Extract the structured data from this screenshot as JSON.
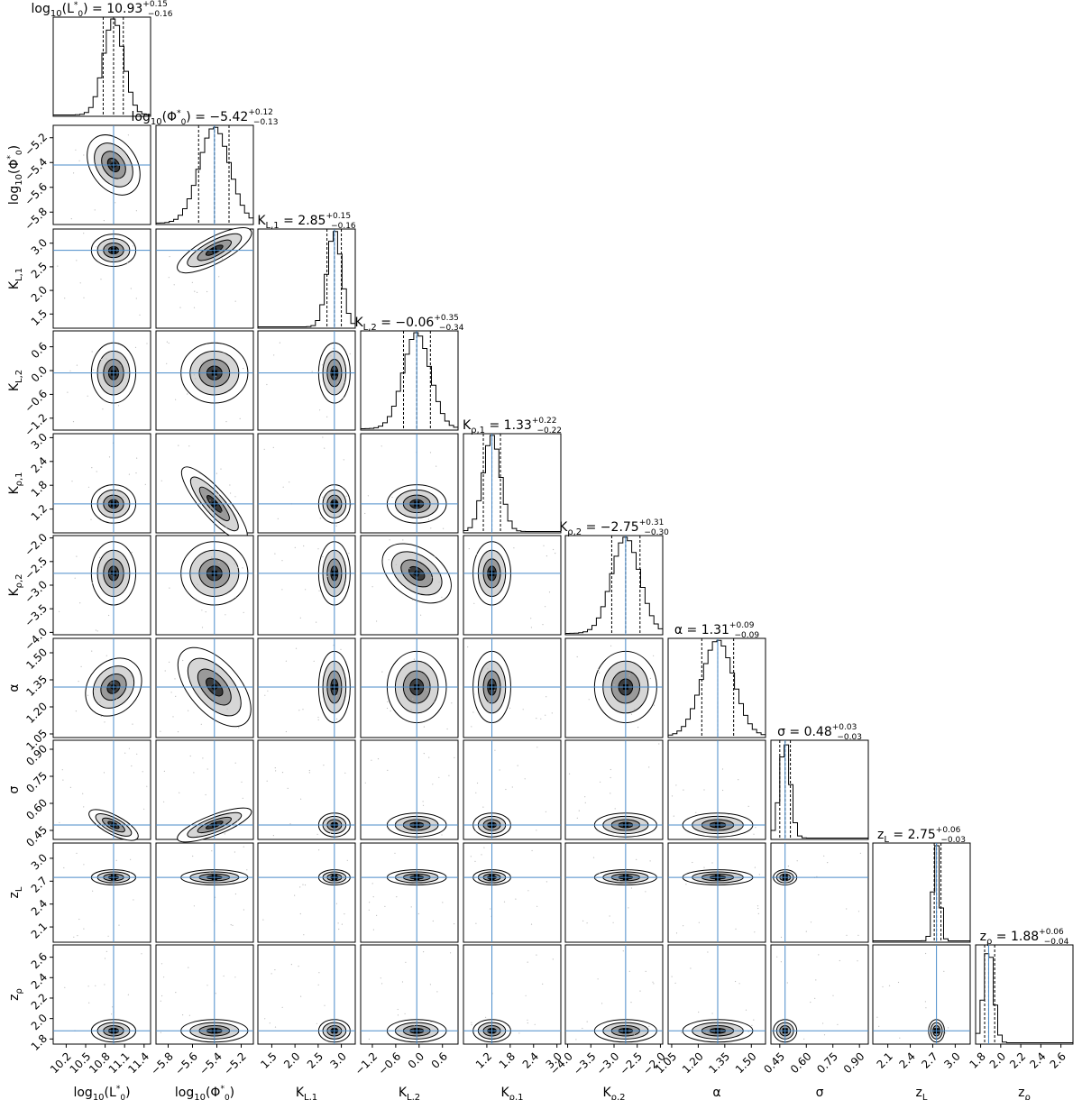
{
  "chart_data": {
    "type": "corner",
    "parameters": [
      {
        "label": "log10(L*0)",
        "axis_label": "log10(L*0)",
        "median": 10.93,
        "plus": 0.15,
        "minus": 0.16,
        "truth": 10.93,
        "range": [
          10.0,
          11.5
        ],
        "ticks": [
          10.2,
          10.5,
          10.8,
          11.1,
          11.4
        ],
        "tick_labels": [
          "10.2",
          "10.5",
          "10.8",
          "11.1",
          "11.4"
        ],
        "title": "log10(L*0) = 10.93",
        "title_plus": "+0.15",
        "title_minus": "−0.16"
      },
      {
        "label": "log10(Φ*0)",
        "axis_label": "log10(Φ*0)",
        "median": -5.42,
        "plus": 0.12,
        "minus": 0.13,
        "truth": -5.42,
        "range": [
          -5.9,
          -5.1
        ],
        "ticks": [
          -5.8,
          -5.6,
          -5.4,
          -5.2
        ],
        "tick_labels": [
          "−5.8",
          "−5.6",
          "−5.4",
          "−5.2"
        ],
        "title": "log10(Φ*0) = −5.42",
        "title_plus": "+0.12",
        "title_minus": "−0.13"
      },
      {
        "label": "KL,1",
        "axis_label": "KL,1",
        "median": 2.85,
        "plus": 0.15,
        "minus": 0.16,
        "truth": 2.85,
        "range": [
          1.2,
          3.3
        ],
        "ticks": [
          1.5,
          2.0,
          2.5,
          3.0
        ],
        "tick_labels": [
          "1.5",
          "2.0",
          "2.5",
          "3.0"
        ],
        "title": "KL,1 = 2.85",
        "title_plus": "+0.15",
        "title_minus": "−0.16"
      },
      {
        "label": "KL,2",
        "axis_label": "KL,2",
        "median": -0.06,
        "plus": 0.35,
        "minus": 0.34,
        "truth": -0.06,
        "range": [
          -1.5,
          1.0
        ],
        "ticks": [
          -1.2,
          -0.6,
          0.0,
          0.6
        ],
        "tick_labels": [
          "−1.2",
          "−0.6",
          "0.0",
          "0.6"
        ],
        "title": "KL,2 = −0.06",
        "title_plus": "+0.35",
        "title_minus": "−0.34"
      },
      {
        "label": "Kρ,1",
        "axis_label": "Kρ,1",
        "median": 1.33,
        "plus": 0.22,
        "minus": 0.22,
        "truth": 1.33,
        "range": [
          0.6,
          3.1
        ],
        "ticks": [
          1.2,
          1.8,
          2.4,
          3.0
        ],
        "tick_labels": [
          "1.2",
          "1.8",
          "2.4",
          "3.0"
        ],
        "title": "Kρ,1 = 1.33",
        "title_plus": "+0.22",
        "title_minus": "−0.22"
      },
      {
        "label": "Kρ,2",
        "axis_label": "Kρ,2",
        "median": -2.75,
        "plus": 0.31,
        "minus": 0.3,
        "truth": -2.75,
        "range": [
          -4.05,
          -1.95
        ],
        "ticks": [
          -4.0,
          -3.5,
          -3.0,
          -2.5,
          -2.0
        ],
        "tick_labels": [
          "−4.0",
          "−3.5",
          "−3.0",
          "−2.5",
          "−2.0"
        ],
        "title": "Kρ,2 = −2.75",
        "title_plus": "+0.31",
        "title_minus": "−0.30"
      },
      {
        "label": "α",
        "axis_label": "α",
        "median": 1.31,
        "plus": 0.09,
        "minus": 0.09,
        "truth": 1.31,
        "range": [
          1.03,
          1.58
        ],
        "ticks": [
          1.05,
          1.2,
          1.35,
          1.5
        ],
        "tick_labels": [
          "1.05",
          "1.20",
          "1.35",
          "1.50"
        ],
        "title": "α = 1.31",
        "title_plus": "+0.09",
        "title_minus": "−0.09"
      },
      {
        "label": "σ",
        "axis_label": "σ",
        "median": 0.48,
        "plus": 0.03,
        "minus": 0.03,
        "truth": 0.48,
        "range": [
          0.4,
          0.95
        ],
        "ticks": [
          0.45,
          0.6,
          0.75,
          0.9
        ],
        "tick_labels": [
          "0.45",
          "0.60",
          "0.75",
          "0.90"
        ],
        "title": "σ = 0.48",
        "title_plus": "+0.03",
        "title_minus": "−0.03"
      },
      {
        "label": "zL",
        "axis_label": "zL",
        "median": 2.75,
        "plus": 0.06,
        "minus": 0.03,
        "truth": 2.75,
        "range": [
          1.9,
          3.2
        ],
        "ticks": [
          2.1,
          2.4,
          2.7,
          3.0
        ],
        "tick_labels": [
          "2.1",
          "2.4",
          "2.7",
          "3.0"
        ],
        "title": "zL = 2.75",
        "title_plus": "+0.06",
        "title_minus": "−0.03"
      },
      {
        "label": "zρ",
        "axis_label": "zρ",
        "median": 1.88,
        "plus": 0.06,
        "minus": 0.04,
        "truth": 1.88,
        "range": [
          1.75,
          2.72
        ],
        "ticks": [
          1.8,
          2.0,
          2.2,
          2.4,
          2.6
        ],
        "tick_labels": [
          "1.8",
          "2.0",
          "2.2",
          "2.4",
          "2.6"
        ],
        "title": "zρ = 1.88",
        "title_plus": "+0.06",
        "title_minus": "−0.04"
      }
    ],
    "grid": false,
    "truth_line_color": "#4a8bc9",
    "contour_color": "#000000"
  }
}
